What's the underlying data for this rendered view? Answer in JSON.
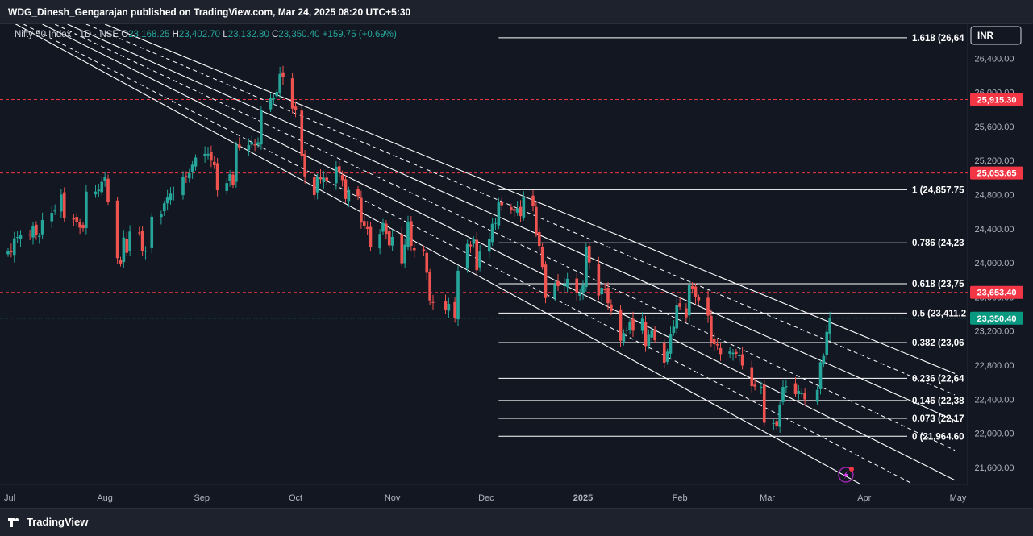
{
  "header": {
    "publisher_text": "WDG_Dinesh_Gengarajan published on TradingView.com, Mar 24, 2025 08:20 UTC+5:30"
  },
  "footer": {
    "brand": "TradingView"
  },
  "legend": {
    "symbol": "Nifty 50 Index · 1D · NSE",
    "open_label": "O",
    "open": "23,168.25",
    "high_label": "H",
    "high": "23,402.70",
    "low_label": "L",
    "low": "23,132.80",
    "close_label": "C",
    "close": "23,350.40",
    "change": "+159.75 (+0.69%)"
  },
  "currency": "INR",
  "colors": {
    "up": "#26a69a",
    "down": "#ef5350",
    "background": "#131722",
    "line": "#ffffff",
    "level": "#f23645",
    "price": "#089981"
  },
  "chart_data": {
    "type": "candlestick",
    "y_range": [
      21400,
      26800
    ],
    "y_ticks": [
      "21,600.00",
      "22,000.00",
      "22,400.00",
      "22,800.00",
      "23,200.00",
      "23,600.00",
      "24,000.00",
      "24,400.00",
      "24,800.00",
      "25,200.00",
      "25,600.00",
      "26,000.00",
      "26,400.00"
    ],
    "x_ticks": [
      "Jul",
      "Aug",
      "Sep",
      "Oct",
      "Nov",
      "Dec",
      "2025",
      "Feb",
      "Mar",
      "Apr",
      "May"
    ],
    "x_start": "2024-07-01",
    "x_end": "2025-05-01",
    "horizontal_levels": [
      {
        "value": 25915.3,
        "label": "25,915.30"
      },
      {
        "value": 25053.65,
        "label": "25,053.65"
      },
      {
        "value": 23653.4,
        "label": "23,653.40"
      }
    ],
    "last_price": {
      "value": 23350.4,
      "label": "23,350.40"
    },
    "fib_levels": [
      {
        "value": 26640,
        "label": "1.618 (26,64"
      },
      {
        "value": 24857.75,
        "label": "1 (24,857.75"
      },
      {
        "value": 24235,
        "label": "0.786 (24,23"
      },
      {
        "value": 23755,
        "label": "0.618 (23,75"
      },
      {
        "value": 23411,
        "label": "0.5 (23,411.2"
      },
      {
        "value": 23065,
        "label": "0.382 (23,06"
      },
      {
        "value": 22645,
        "label": "0.236 (22,64"
      },
      {
        "value": 22385,
        "label": "0.146 (22,38"
      },
      {
        "value": 22175,
        "label": "0.073 (22,17"
      },
      {
        "value": 21964.6,
        "label": "0 (21,964.60"
      }
    ],
    "fib_start_date": "2024-12-05",
    "channel_lines": [
      {
        "style": "solid",
        "from": [
          "2024-08-01",
          26800
        ],
        "to": [
          "2025-04-30",
          22700
        ]
      },
      {
        "style": "solid",
        "from": [
          "2024-07-20",
          26800
        ],
        "to": [
          "2025-04-30",
          22150
        ]
      },
      {
        "style": "solid",
        "from": [
          "2024-07-12",
          26800
        ],
        "to": [
          "2025-04-30",
          21450
        ]
      },
      {
        "style": "solid",
        "from": [
          "2024-07-01",
          26850
        ],
        "to": [
          "2025-04-30",
          20800
        ]
      },
      {
        "style": "dashed",
        "from": [
          "2024-07-26",
          26800
        ],
        "to": [
          "2025-04-30",
          22450
        ]
      },
      {
        "style": "dashed",
        "from": [
          "2024-07-16",
          26800
        ],
        "to": [
          "2025-04-30",
          21800
        ]
      },
      {
        "style": "dashed",
        "from": [
          "2024-07-06",
          26800
        ],
        "to": [
          "2025-04-30",
          21150
        ]
      }
    ],
    "closes": [
      [
        "2024-07-01",
        24141
      ],
      [
        "2024-07-02",
        24124
      ],
      [
        "2024-07-03",
        24287
      ],
      [
        "2024-07-04",
        24302
      ],
      [
        "2024-07-05",
        24324
      ],
      [
        "2024-07-08",
        24321
      ],
      [
        "2024-07-09",
        24433
      ],
      [
        "2024-07-10",
        24324
      ],
      [
        "2024-07-11",
        24316
      ],
      [
        "2024-07-12",
        24502
      ],
      [
        "2024-07-15",
        24587
      ],
      [
        "2024-07-16",
        24613
      ],
      [
        "2024-07-18",
        24801
      ],
      [
        "2024-07-19",
        24531
      ],
      [
        "2024-07-22",
        24509
      ],
      [
        "2024-07-23",
        24479
      ],
      [
        "2024-07-24",
        24413
      ],
      [
        "2024-07-25",
        24406
      ],
      [
        "2024-07-26",
        24835
      ],
      [
        "2024-07-29",
        24836
      ],
      [
        "2024-07-30",
        24857
      ],
      [
        "2024-07-31",
        24951
      ],
      [
        "2024-08-01",
        25011
      ],
      [
        "2024-08-02",
        24718
      ],
      [
        "2024-08-05",
        24055
      ],
      [
        "2024-08-06",
        23992
      ],
      [
        "2024-08-07",
        24297
      ],
      [
        "2024-08-08",
        24117
      ],
      [
        "2024-08-09",
        24367
      ],
      [
        "2024-08-12",
        24347
      ],
      [
        "2024-08-13",
        24139
      ],
      [
        "2024-08-14",
        24143
      ],
      [
        "2024-08-16",
        24541
      ],
      [
        "2024-08-19",
        24572
      ],
      [
        "2024-08-20",
        24698
      ],
      [
        "2024-08-21",
        24770
      ],
      [
        "2024-08-22",
        24811
      ],
      [
        "2024-08-23",
        24823
      ],
      [
        "2024-08-26",
        25010
      ],
      [
        "2024-08-27",
        25017
      ],
      [
        "2024-08-28",
        25052
      ],
      [
        "2024-08-29",
        25151
      ],
      [
        "2024-08-30",
        25235
      ],
      [
        "2024-09-02",
        25278
      ],
      [
        "2024-09-03",
        25279
      ],
      [
        "2024-09-04",
        25198
      ],
      [
        "2024-09-05",
        25145
      ],
      [
        "2024-09-06",
        24852
      ],
      [
        "2024-09-09",
        24936
      ],
      [
        "2024-09-10",
        25041
      ],
      [
        "2024-09-11",
        24918
      ],
      [
        "2024-09-12",
        25388
      ],
      [
        "2024-09-13",
        25356
      ],
      [
        "2024-09-16",
        25383
      ],
      [
        "2024-09-17",
        25418
      ],
      [
        "2024-09-18",
        25377
      ],
      [
        "2024-09-19",
        25415
      ],
      [
        "2024-09-20",
        25790
      ],
      [
        "2024-09-23",
        25939
      ],
      [
        "2024-09-24",
        25940
      ],
      [
        "2024-09-25",
        26004
      ],
      [
        "2024-09-26",
        26216
      ],
      [
        "2024-09-27",
        26178
      ],
      [
        "2024-09-30",
        25810
      ],
      [
        "2024-10-01",
        25796
      ],
      [
        "2024-10-03",
        25250
      ],
      [
        "2024-10-04",
        25014
      ],
      [
        "2024-10-07",
        24795
      ],
      [
        "2024-10-08",
        25013
      ],
      [
        "2024-10-09",
        24981
      ],
      [
        "2024-10-10",
        24998
      ],
      [
        "2024-10-11",
        24964
      ],
      [
        "2024-10-14",
        25127
      ],
      [
        "2024-10-15",
        25057
      ],
      [
        "2024-10-16",
        24971
      ],
      [
        "2024-10-17",
        24749
      ],
      [
        "2024-10-18",
        24854
      ],
      [
        "2024-10-21",
        24781
      ],
      [
        "2024-10-22",
        24472
      ],
      [
        "2024-10-23",
        24435
      ],
      [
        "2024-10-24",
        24399
      ],
      [
        "2024-10-25",
        24180
      ],
      [
        "2024-10-28",
        24339
      ],
      [
        "2024-10-29",
        24466
      ],
      [
        "2024-10-30",
        24340
      ],
      [
        "2024-10-31",
        24205
      ],
      [
        "2024-11-01",
        24304
      ],
      [
        "2024-11-04",
        23995
      ],
      [
        "2024-11-05",
        24213
      ],
      [
        "2024-11-06",
        24484
      ],
      [
        "2024-11-07",
        24199
      ],
      [
        "2024-11-08",
        24148
      ],
      [
        "2024-11-11",
        24141
      ],
      [
        "2024-11-12",
        23883
      ],
      [
        "2024-11-13",
        23559
      ],
      [
        "2024-11-14",
        23532
      ],
      [
        "2024-11-18",
        23453
      ],
      [
        "2024-11-19",
        23518
      ],
      [
        "2024-11-21",
        23349
      ],
      [
        "2024-11-22",
        23907
      ],
      [
        "2024-11-25",
        24221
      ],
      [
        "2024-11-26",
        24194
      ],
      [
        "2024-11-27",
        24274
      ],
      [
        "2024-11-28",
        23914
      ],
      [
        "2024-11-29",
        24131
      ],
      [
        "2024-12-02",
        24276
      ],
      [
        "2024-12-03",
        24457
      ],
      [
        "2024-12-04",
        24467
      ],
      [
        "2024-12-05",
        24708
      ],
      [
        "2024-12-06",
        24677
      ],
      [
        "2024-12-09",
        24619
      ],
      [
        "2024-12-10",
        24610
      ],
      [
        "2024-12-11",
        24641
      ],
      [
        "2024-12-12",
        24548
      ],
      [
        "2024-12-13",
        24768
      ],
      [
        "2024-12-16",
        24668
      ],
      [
        "2024-12-17",
        24336
      ],
      [
        "2024-12-18",
        24198
      ],
      [
        "2024-12-19",
        23952
      ],
      [
        "2024-12-20",
        23587
      ],
      [
        "2024-12-23",
        23753
      ],
      [
        "2024-12-24",
        23727
      ],
      [
        "2024-12-26",
        23750
      ],
      [
        "2024-12-27",
        23813
      ],
      [
        "2024-12-30",
        23644
      ],
      [
        "2024-12-31",
        23645
      ],
      [
        "2025-01-01",
        23742
      ],
      [
        "2025-01-02",
        24188
      ],
      [
        "2025-01-03",
        24004
      ],
      [
        "2025-01-06",
        23616
      ],
      [
        "2025-01-07",
        23707
      ],
      [
        "2025-01-08",
        23688
      ],
      [
        "2025-01-09",
        23526
      ],
      [
        "2025-01-10",
        23431
      ],
      [
        "2025-01-13",
        23085
      ],
      [
        "2025-01-14",
        23176
      ],
      [
        "2025-01-15",
        23213
      ],
      [
        "2025-01-16",
        23311
      ],
      [
        "2025-01-17",
        23203
      ],
      [
        "2025-01-20",
        23344
      ],
      [
        "2025-01-21",
        23024
      ],
      [
        "2025-01-22",
        23155
      ],
      [
        "2025-01-23",
        23205
      ],
      [
        "2025-01-24",
        23092
      ],
      [
        "2025-01-27",
        22829
      ],
      [
        "2025-01-28",
        22957
      ],
      [
        "2025-01-29",
        23163
      ],
      [
        "2025-01-30",
        23249
      ],
      [
        "2025-01-31",
        23508
      ],
      [
        "2025-02-01",
        23482
      ],
      [
        "2025-02-03",
        23361
      ],
      [
        "2025-02-04",
        23739
      ],
      [
        "2025-02-05",
        23696
      ],
      [
        "2025-02-06",
        23603
      ],
      [
        "2025-02-07",
        23560
      ],
      [
        "2025-02-10",
        23381
      ],
      [
        "2025-02-11",
        23071
      ],
      [
        "2025-02-12",
        23045
      ],
      [
        "2025-02-13",
        23031
      ],
      [
        "2025-02-14",
        22929
      ],
      [
        "2025-02-17",
        22959
      ],
      [
        "2025-02-18",
        22945
      ],
      [
        "2025-02-19",
        22932
      ],
      [
        "2025-02-20",
        22913
      ],
      [
        "2025-02-21",
        22795
      ],
      [
        "2025-02-24",
        22553
      ],
      [
        "2025-02-25",
        22547
      ],
      [
        "2025-02-27",
        22545
      ],
      [
        "2025-02-28",
        22124
      ],
      [
        "2025-03-03",
        22119
      ],
      [
        "2025-03-04",
        22083
      ],
      [
        "2025-03-05",
        22337
      ],
      [
        "2025-03-06",
        22544
      ],
      [
        "2025-03-07",
        22553
      ],
      [
        "2025-03-10",
        22460
      ],
      [
        "2025-03-11",
        22497
      ],
      [
        "2025-03-12",
        22470
      ],
      [
        "2025-03-13",
        22397
      ],
      [
        "2025-03-17",
        22509
      ],
      [
        "2025-03-18",
        22834
      ],
      [
        "2025-03-19",
        22907
      ],
      [
        "2025-03-20",
        23190
      ],
      [
        "2025-03-21",
        23350
      ]
    ]
  }
}
